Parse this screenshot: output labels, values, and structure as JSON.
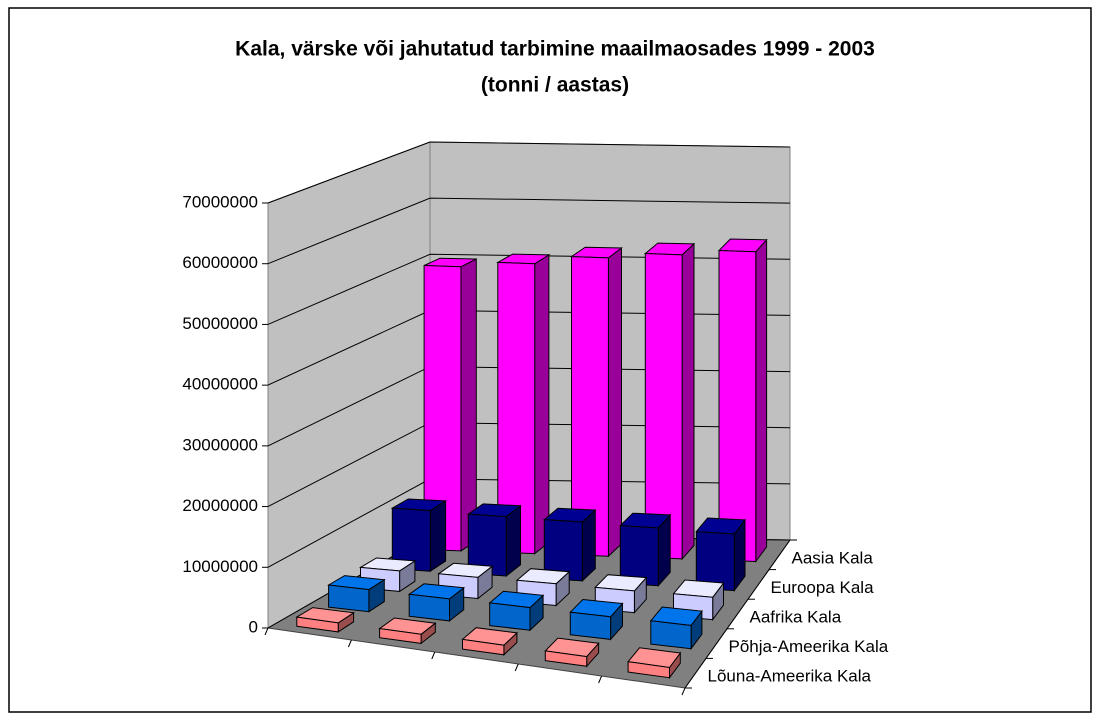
{
  "chart_data": {
    "type": "bar3d",
    "title": "Kala, värske või jahutatud tarbimine maailmaosades 1999 - 2003",
    "subtitle": "(tonni / aastas)",
    "categories": [
      null,
      null,
      null,
      null,
      null
    ],
    "series": [
      {
        "name": "Lõuna-Ameerika Kala",
        "color": "#ff8080",
        "values": [
          1500000,
          1500000,
          1600000,
          1600000,
          1700000
        ]
      },
      {
        "name": "Põhja-Ameerika Kala",
        "color": "#0066cc",
        "values": [
          3700000,
          3700000,
          3800000,
          3800000,
          3900000
        ]
      },
      {
        "name": "Aafrika Kala",
        "color": "#ccccff",
        "values": [
          3500000,
          3600000,
          3700000,
          3700000,
          3800000
        ]
      },
      {
        "name": "Euroopa Kala",
        "color": "#000080",
        "values": [
          10500000,
          10300000,
          10200000,
          10000000,
          9800000
        ]
      },
      {
        "name": "Aasia Kala",
        "color": "#ff00ff",
        "values": [
          50000000,
          51000000,
          52500000,
          53500000,
          54500000
        ]
      }
    ],
    "ylim": [
      0,
      70000000
    ],
    "yticks": [
      0,
      10000000,
      20000000,
      30000000,
      40000000,
      50000000,
      60000000,
      70000000
    ],
    "grid": true
  }
}
